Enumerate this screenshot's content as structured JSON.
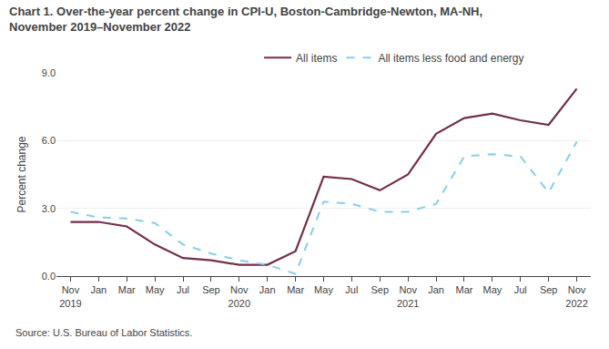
{
  "chart_data": {
    "type": "line",
    "title": "Chart 1. Over-the-year percent change in CPI-U, Boston-Cambridge-Newton, MA-NH,\nNovember 2019–November 2022",
    "ylabel": "Percent change",
    "annotations": [
      "Source: U.S. Bureau of Labor Statistics."
    ],
    "categories": [
      "Nov\n2019",
      "Jan",
      "Mar",
      "May",
      "Jul",
      "Sep",
      "Nov\n2020",
      "Jan",
      "Mar",
      "May",
      "Jul",
      "Sep",
      "Nov\n2021",
      "Jan",
      "Mar",
      "May",
      "Jul",
      "Sep",
      "Nov\n2022"
    ],
    "series": [
      {
        "name": "All items",
        "color": "#722F4A",
        "line_style": "solid",
        "values": [
          2.4,
          2.4,
          2.2,
          1.4,
          0.8,
          0.7,
          0.5,
          0.5,
          1.1,
          4.4,
          4.3,
          3.8,
          4.5,
          6.3,
          7.0,
          7.2,
          6.9,
          6.7,
          8.3
        ]
      },
      {
        "name": "All items less food and energy",
        "color": "#87CEEB",
        "line_style": "dashed",
        "values": [
          2.85,
          2.6,
          2.55,
          2.35,
          1.4,
          1.0,
          0.7,
          0.5,
          0.1,
          3.3,
          3.2,
          2.85,
          2.85,
          3.2,
          5.3,
          5.4,
          5.3,
          3.7,
          5.95
        ]
      }
    ],
    "ylim": [
      0.0,
      9.0
    ],
    "yticks": [
      {
        "value": 0.0,
        "label": "0.0"
      },
      {
        "value": 3.0,
        "label": "3.0"
      },
      {
        "value": 6.0,
        "label": "6.0"
      },
      {
        "value": 9.0,
        "label": "9.0"
      }
    ],
    "grid": true,
    "legend": "upper center"
  }
}
